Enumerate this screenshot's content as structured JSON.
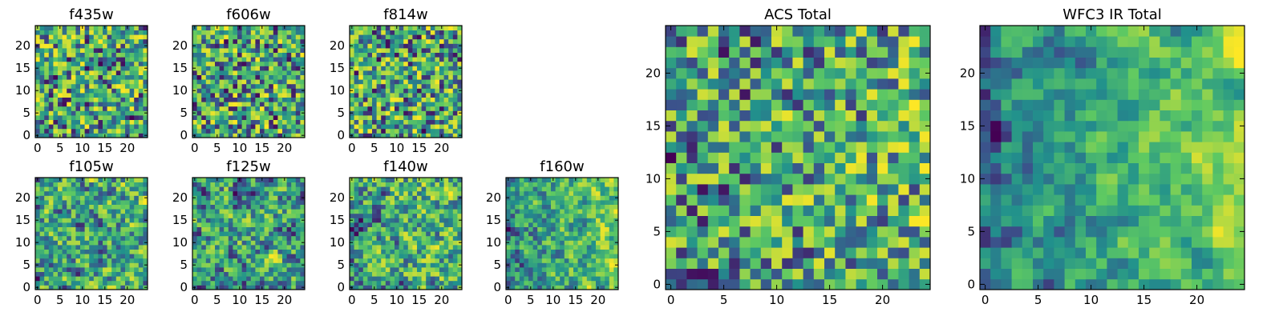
{
  "figure_description_colormap": "viridis",
  "colormap_stops": [
    "#440154",
    "#3b528b",
    "#21918c",
    "#5ec962",
    "#fde725"
  ],
  "chart_data": [
    {
      "type": "heatmap",
      "title": "f435w",
      "group": "small",
      "grid_size": 25,
      "xticks": [
        0,
        5,
        10,
        15,
        20
      ],
      "yticks": [
        0,
        5,
        10,
        15,
        20
      ],
      "xlim": [
        0,
        25
      ],
      "ylim": [
        0,
        25
      ],
      "pixel_scale": 1,
      "seed": 11,
      "smooth": 0,
      "tilt": 0.0
    },
    {
      "type": "heatmap",
      "title": "f606w",
      "group": "small",
      "grid_size": 25,
      "xticks": [
        0,
        5,
        10,
        15,
        20
      ],
      "yticks": [
        0,
        5,
        10,
        15,
        20
      ],
      "xlim": [
        0,
        25
      ],
      "ylim": [
        0,
        25
      ],
      "pixel_scale": 1,
      "seed": 23,
      "smooth": 0,
      "tilt": 0.0
    },
    {
      "type": "heatmap",
      "title": "f814w",
      "group": "small",
      "grid_size": 25,
      "xticks": [
        0,
        5,
        10,
        15,
        20
      ],
      "yticks": [
        0,
        5,
        10,
        15,
        20
      ],
      "xlim": [
        0,
        25
      ],
      "ylim": [
        0,
        25
      ],
      "pixel_scale": 1,
      "seed": 37,
      "smooth": 0,
      "tilt": 0.0
    },
    {
      "type": "heatmap",
      "title": "f105w",
      "group": "small",
      "grid_size": 25,
      "xticks": [
        0,
        5,
        10,
        15,
        20
      ],
      "yticks": [
        0,
        5,
        10,
        15,
        20
      ],
      "xlim": [
        0,
        25
      ],
      "ylim": [
        0,
        25
      ],
      "pixel_scale": 1,
      "seed": 41,
      "smooth": 1,
      "tilt": 0.0
    },
    {
      "type": "heatmap",
      "title": "f125w",
      "group": "small",
      "grid_size": 25,
      "xticks": [
        0,
        5,
        10,
        15,
        20
      ],
      "yticks": [
        0,
        5,
        10,
        15,
        20
      ],
      "xlim": [
        0,
        25
      ],
      "ylim": [
        0,
        25
      ],
      "pixel_scale": 1,
      "seed": 53,
      "smooth": 1,
      "tilt": 0.1
    },
    {
      "type": "heatmap",
      "title": "f140w",
      "group": "small",
      "grid_size": 25,
      "xticks": [
        0,
        5,
        10,
        15,
        20
      ],
      "yticks": [
        0,
        5,
        10,
        15,
        20
      ],
      "xlim": [
        0,
        25
      ],
      "ylim": [
        0,
        25
      ],
      "pixel_scale": 1,
      "seed": 67,
      "smooth": 1,
      "tilt": 0.1
    },
    {
      "type": "heatmap",
      "title": "f160w",
      "group": "small",
      "grid_size": 25,
      "xticks": [
        0,
        5,
        10,
        15,
        20
      ],
      "yticks": [
        0,
        5,
        10,
        15,
        20
      ],
      "xlim": [
        0,
        25
      ],
      "ylim": [
        0,
        25
      ],
      "pixel_scale": 1,
      "seed": 79,
      "smooth": 1,
      "tilt": 0.25
    },
    {
      "type": "heatmap",
      "title": "ACS Total",
      "group": "large",
      "grid_size": 25,
      "xticks": [
        0,
        5,
        10,
        15,
        20
      ],
      "yticks": [
        0,
        5,
        10,
        15,
        20
      ],
      "xlim": [
        0,
        25
      ],
      "ylim": [
        0,
        25
      ],
      "pixel_scale": 1,
      "seed": 97,
      "smooth": 0,
      "tilt": 0.1
    },
    {
      "type": "heatmap",
      "title": "WFC3 IR Total",
      "group": "large",
      "grid_size": 25,
      "xticks": [
        0,
        5,
        10,
        15,
        20
      ],
      "yticks": [
        0,
        5,
        10,
        15,
        20
      ],
      "xlim": [
        0,
        25
      ],
      "ylim": [
        0,
        25
      ],
      "pixel_scale": 1,
      "seed": 113,
      "smooth": 2,
      "tilt": 0.35
    }
  ]
}
